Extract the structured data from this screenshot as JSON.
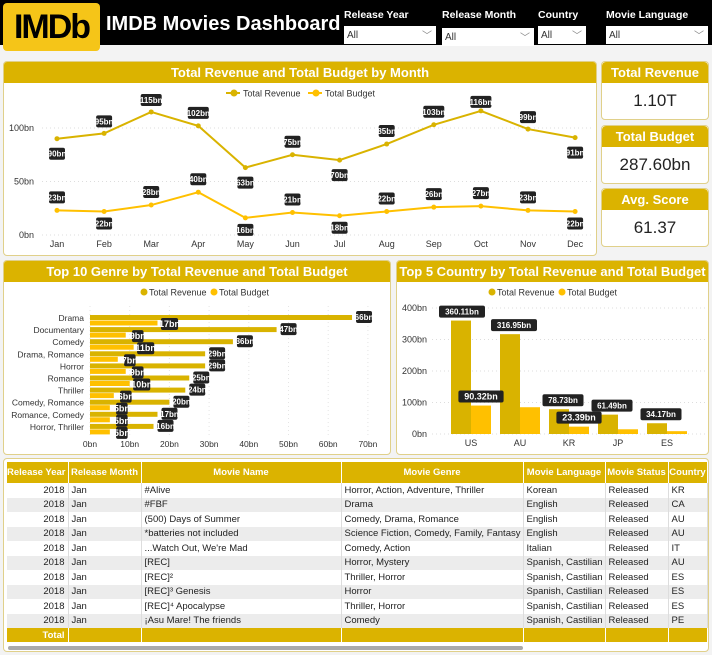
{
  "header": {
    "logo": "IMDb",
    "title": "IMDB Movies Dashboard"
  },
  "filters": [
    {
      "label": "Release Year",
      "value": "All"
    },
    {
      "label": "Release Month",
      "value": "All"
    },
    {
      "label": "Country",
      "value": "All"
    },
    {
      "label": "Movie Language",
      "value": "All"
    }
  ],
  "kpis": [
    {
      "label": "Total Revenue",
      "value": "1.10T"
    },
    {
      "label": "Total Budget",
      "value": "287.60bn"
    },
    {
      "label": "Avg. Score",
      "value": "61.37"
    }
  ],
  "colors": {
    "accent": "#dbb300",
    "revenue": "#d9b300",
    "budget": "#ffc000"
  },
  "chart_data": [
    {
      "type": "line",
      "title": "Total Revenue and Total Budget by Month",
      "legend": "top-center",
      "categories": [
        "Jan",
        "Feb",
        "Mar",
        "Apr",
        "May",
        "Jun",
        "Jul",
        "Aug",
        "Sep",
        "Oct",
        "Nov",
        "Dec"
      ],
      "yticks": [
        "0bn",
        "50bn",
        "100bn"
      ],
      "ylim": [
        0,
        125
      ],
      "grid": true,
      "series": [
        {
          "name": "Total Revenue",
          "values": [
            90,
            95,
            115,
            102,
            63,
            75,
            70,
            85,
            103,
            116,
            99,
            91
          ]
        },
        {
          "name": "Total Budget",
          "values": [
            23,
            22,
            28,
            40,
            16,
            21,
            18,
            22,
            26,
            27,
            23,
            22
          ]
        }
      ]
    },
    {
      "type": "bar",
      "orientation": "horizontal",
      "title": "Top 10 Genre by Total Revenue and Total Budget",
      "legend": "top-center",
      "categories": [
        "Drama",
        "Documentary",
        "Comedy",
        "Drama, Romance",
        "Horror",
        "Romance",
        "Thriller",
        "Comedy, Romance",
        "Romance, Comedy",
        "Horror, Thriller"
      ],
      "xticks": [
        "0bn",
        "10bn",
        "20bn",
        "30bn",
        "40bn",
        "50bn",
        "60bn",
        "70bn"
      ],
      "xlim": [
        0,
        70
      ],
      "series": [
        {
          "name": "Total Revenue",
          "values": [
            66,
            47,
            36,
            29,
            29,
            25,
            24,
            20,
            17,
            16
          ]
        },
        {
          "name": "Total Budget",
          "values": [
            17,
            9,
            11,
            7,
            9,
            10,
            6,
            5,
            5,
            5
          ]
        }
      ]
    },
    {
      "type": "bar",
      "title": "Top 5 Country by Total Revenue and Total Budget",
      "legend": "top-center",
      "categories": [
        "US",
        "AU",
        "KR",
        "JP",
        "ES"
      ],
      "yticks": [
        "0bn",
        "100bn",
        "200bn",
        "300bn",
        "400bn"
      ],
      "ylim": [
        0,
        400
      ],
      "series": [
        {
          "name": "Total Revenue",
          "values": [
            360.11,
            316.95,
            78.73,
            61.49,
            34.17
          ],
          "labels": [
            "360.11bn",
            "316.95bn",
            "78.73bn",
            "61.49bn",
            "34.17bn"
          ]
        },
        {
          "name": "Total Budget",
          "values": [
            90.32,
            85,
            23.39,
            15,
            9
          ],
          "labels": [
            "90.32bn",
            "",
            "23.39bn",
            "",
            ""
          ]
        }
      ]
    }
  ],
  "table": {
    "columns": [
      "Release Year",
      "Release Month",
      "Movie Name",
      "Movie Genre",
      "Movie Language",
      "Movie Status",
      "Country"
    ],
    "rows": [
      [
        "2018",
        "Jan",
        "#Alive",
        "Horror, Action, Adventure, Thriller",
        "Korean",
        "Released",
        "KR"
      ],
      [
        "2018",
        "Jan",
        "#FBF",
        "Drama",
        "English",
        "Released",
        "CA"
      ],
      [
        "2018",
        "Jan",
        "(500) Days of Summer",
        "Comedy, Drama, Romance",
        "English",
        "Released",
        "AU"
      ],
      [
        "2018",
        "Jan",
        "*batteries not included",
        "Science Fiction, Comedy, Family, Fantasy",
        "English",
        "Released",
        "AU"
      ],
      [
        "2018",
        "Jan",
        "...Watch Out, We're Mad",
        "Comedy, Action",
        "Italian",
        "Released",
        "IT"
      ],
      [
        "2018",
        "Jan",
        "[REC]",
        "Horror, Mystery",
        "Spanish, Castilian",
        "Released",
        "AU"
      ],
      [
        "2018",
        "Jan",
        "[REC]²",
        "Thriller, Horror",
        "Spanish, Castilian",
        "Released",
        "ES"
      ],
      [
        "2018",
        "Jan",
        "[REC]³ Genesis",
        "Horror",
        "Spanish, Castilian",
        "Released",
        "ES"
      ],
      [
        "2018",
        "Jan",
        "[REC]⁴ Apocalypse",
        "Thriller, Horror",
        "Spanish, Castilian",
        "Released",
        "ES"
      ],
      [
        "2018",
        "Jan",
        "¡Asu Mare! The friends",
        "Comedy",
        "Spanish, Castilian",
        "Released",
        "PE"
      ]
    ],
    "total_label": "Total"
  }
}
